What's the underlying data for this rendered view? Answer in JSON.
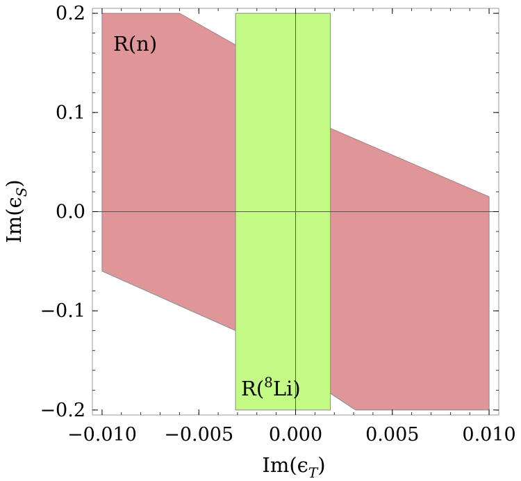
{
  "chart_data": {
    "type": "area",
    "xlabel": "Im(ϵ_T)",
    "ylabel": "Im(ϵ_S)",
    "xlim": [
      -0.0105,
      0.0105
    ],
    "ylim": [
      -0.205,
      0.205
    ],
    "x_ticks": [
      -0.01,
      -0.005,
      0.0,
      0.005,
      0.01
    ],
    "x_tick_labels": [
      "−0.010",
      "−0.005",
      "0.000",
      "0.005",
      "0.010"
    ],
    "y_ticks": [
      -0.2,
      -0.1,
      0.0,
      0.1,
      0.2
    ],
    "y_tick_labels": [
      "−0.2",
      "−0.1",
      "0.0",
      "0.1",
      "0.2"
    ],
    "grid": false,
    "regions": [
      {
        "name": "R(n)",
        "label": "R(n)",
        "color": "#e09698",
        "polygon": [
          [
            -0.01,
            0.2
          ],
          [
            -0.006,
            0.2
          ],
          [
            -0.001,
            0.145
          ],
          [
            0.0018,
            0.084
          ],
          [
            0.01,
            0.015
          ],
          [
            0.01,
            -0.2
          ],
          [
            0.0031,
            -0.2
          ],
          [
            -0.0031,
            -0.12
          ],
          [
            -0.01,
            -0.06
          ]
        ]
      },
      {
        "name": "R(8Li)",
        "label_prefix": "R(",
        "label_sup": "8",
        "label_suffix": "Li)",
        "color": "#c3fb84",
        "polygon": [
          [
            -0.0031,
            0.2
          ],
          [
            0.0018,
            0.2
          ],
          [
            0.0018,
            -0.2
          ],
          [
            -0.0031,
            -0.2
          ]
        ]
      }
    ]
  }
}
